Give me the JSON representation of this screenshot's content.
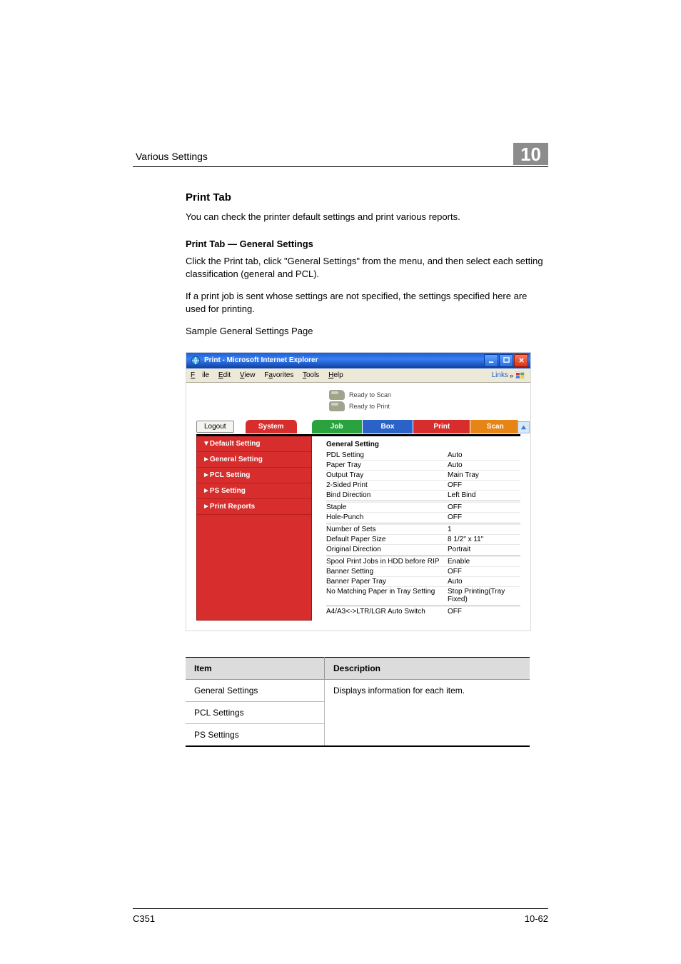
{
  "header": {
    "section_title": "Various Settings",
    "chapter_number": "10"
  },
  "content": {
    "h3": "Print Tab",
    "p1": "You can check the printer default settings and print various reports.",
    "h4": "Print Tab — General Settings",
    "p2": "Click the Print tab, click \"General Settings\" from the menu, and then select each setting classification (general and PCL).",
    "p3": "If a print job is sent whose settings are not specified, the settings specified here are used for printing.",
    "p4": "Sample General Settings Page"
  },
  "ie_window": {
    "title": "Print - Microsoft Internet Explorer",
    "menus": {
      "file": "File",
      "edit": "Edit",
      "view": "View",
      "favorites": "Favorites",
      "tools": "Tools",
      "help": "Help"
    },
    "links_label": "Links",
    "status_scan": "Ready to Scan",
    "status_print": "Ready to Print",
    "logout": "Logout",
    "tabs": {
      "system": "System",
      "job": "Job",
      "box": "Box",
      "print": "Print",
      "scan": "Scan"
    },
    "sidebar": [
      "▼Default Setting",
      "►General Setting",
      "►PCL Setting",
      "►PS Setting",
      "►Print Reports"
    ],
    "panel_title": "General Setting",
    "panel_rows": [
      {
        "label": "PDL Setting",
        "value": "Auto"
      },
      {
        "label": "Paper Tray",
        "value": "Auto"
      },
      {
        "label": "Output Tray",
        "value": "Main Tray"
      },
      {
        "label": "2-Sided Print",
        "value": "OFF"
      },
      {
        "label": "Bind Direction",
        "value": "Left Bind"
      },
      {
        "label": "Staple",
        "value": "OFF"
      },
      {
        "label": "Hole-Punch",
        "value": "OFF"
      },
      {
        "label": "Number of Sets",
        "value": "1"
      },
      {
        "label": "Default Paper Size",
        "value": "8 1/2\" x 11\""
      },
      {
        "label": "Original Direction",
        "value": "Portrait"
      },
      {
        "label": "Spool Print Jobs in HDD before RIP",
        "value": "Enable"
      },
      {
        "label": "Banner Setting",
        "value": "OFF"
      },
      {
        "label": "Banner Paper Tray",
        "value": "Auto"
      },
      {
        "label": "No Matching Paper in Tray Setting",
        "value": "Stop Printing(Tray Fixed)"
      },
      {
        "label": "A4/A3<->LTR/LGR Auto Switch",
        "value": "OFF"
      }
    ],
    "panel_break_after_indices": [
      4,
      6,
      9,
      13
    ],
    "colors": {
      "sidebar_bg": "#d72d2d",
      "tab_system": "#d72d2d",
      "tab_job": "#2aa23e",
      "tab_box": "#2a62c8",
      "tab_print": "#d72d2d",
      "tab_scan": "#e68416",
      "ie_title_gradient_from": "#1b5ed7",
      "ie_title_gradient_to": "#0b3fa3",
      "menubar_bg": "#ece9d8"
    }
  },
  "item_table": {
    "head_item": "Item",
    "head_desc": "Description",
    "rows": [
      {
        "item": "General Settings"
      },
      {
        "item": "PCL Settings"
      },
      {
        "item": "PS Settings"
      }
    ],
    "description": "Displays information for each item."
  },
  "footer": {
    "left": "C351",
    "right": "10-62"
  }
}
